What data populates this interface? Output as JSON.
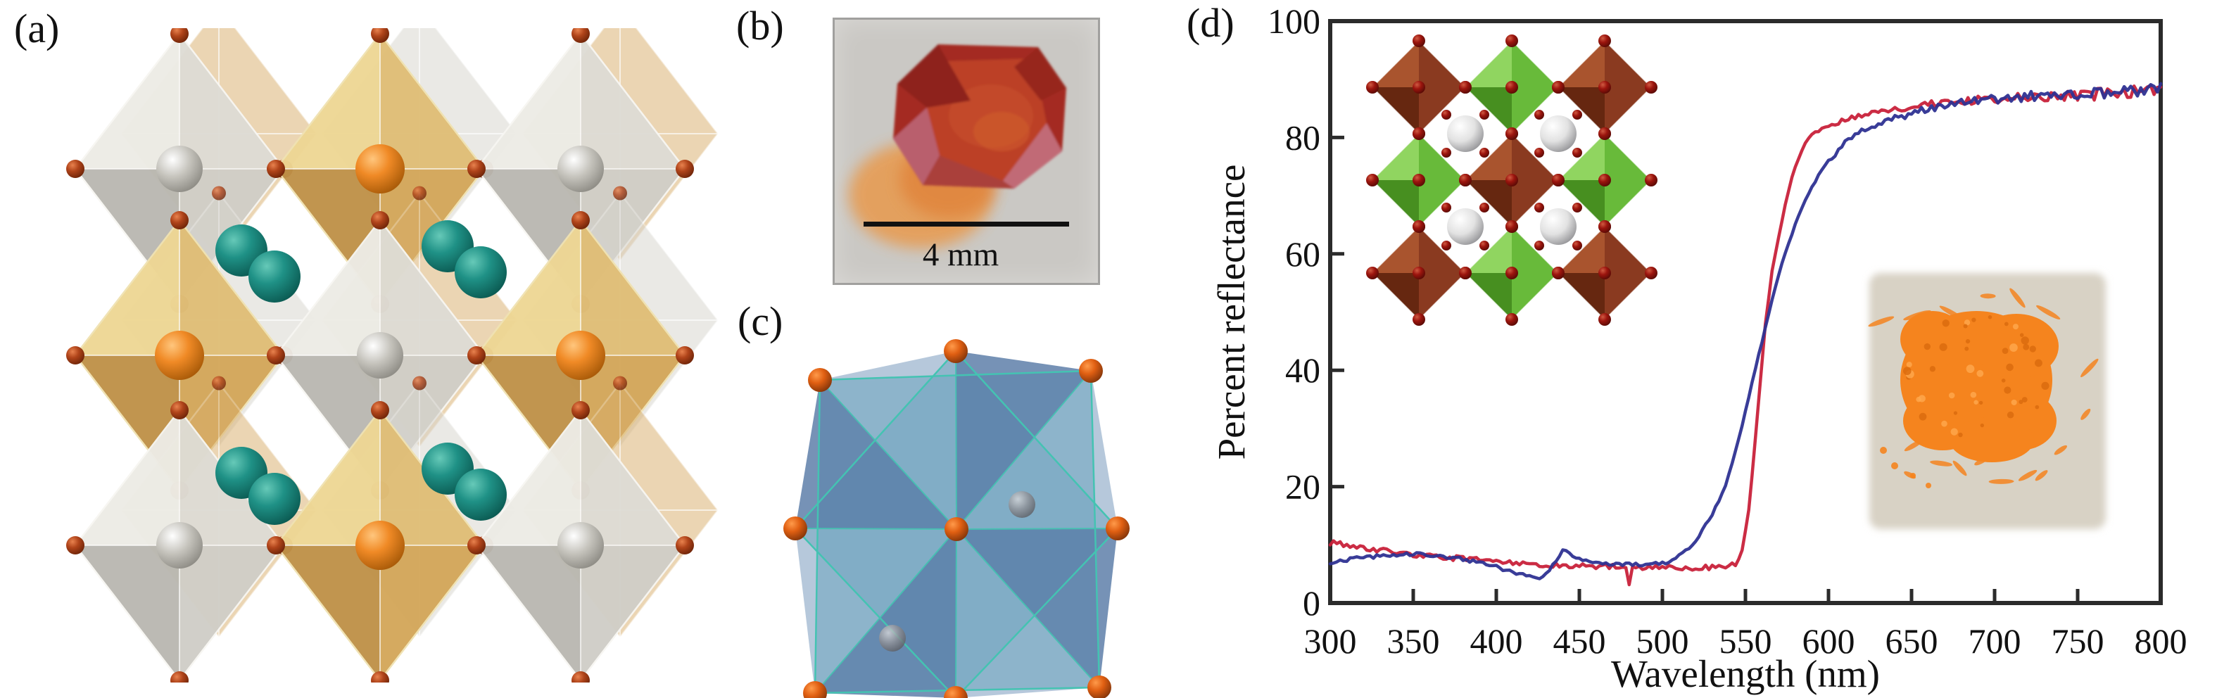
{
  "figure": {
    "panel_a": {
      "label": "(a)",
      "description": "double-perovskite crystal structure: checkerboard of silver-white and gold octahedra with small red-brown vertex spheres, gray and orange central atoms, and pairs of teal spheres in the interstices",
      "colors": {
        "white_face_light": "#edece6",
        "white_face": "#dedcd5",
        "white_face_dark": "#bab8b1",
        "white_face_mid": "#d0cec7",
        "gold_face_light": "#eed794",
        "gold_face": "#e0be76",
        "gold_face_dark": "#bf9148",
        "gold_face_mid": "#d4a75a",
        "back_gold": "#d8ad6a",
        "back_white": "#d6d4cd",
        "vertex_sphere": "#b0441a",
        "gray_sphere": "#c6c4bd",
        "orange_sphere": "#f08a26",
        "teal_sphere": "#1f9186"
      }
    },
    "panel_b": {
      "label": "(b)",
      "scale_bar_label": "4 mm",
      "description": "photograph of a red-orange faceted crystal on a gray background with a black scale bar",
      "colors": {
        "background": "#cac8c4",
        "crystal_body": "#bc4026",
        "crystal_dark": "#8e241e",
        "crystal_pink": "#b95f6d",
        "glow": "#e89a4e",
        "scale_bar": "#111111"
      }
    },
    "panel_c": {
      "label": "(c)",
      "description": "two interpenetrating semi-transparent teal octahedra with steel-blue shaded facets, orange vertex spheres and two faint gray spheres",
      "colors": {
        "teal_face": "#94cbd5",
        "blue_face": "#587aa6",
        "edge": "#44c3b2",
        "orange_sphere": "#e05f12",
        "gray_sphere": "#8e8e93"
      }
    },
    "panel_d": {
      "label": "(d)",
      "inset_structure": {
        "description": "perovskite inset: 3x3 checkerboard of brown and green octahedra with dark-red vertex atoms and four white spheres",
        "colors": {
          "brown": "#8a3a20",
          "brown_light": "#a9542e",
          "brown_dark": "#662710",
          "green": "#68ba3a",
          "green_light": "#90d560",
          "green_dark": "#478f20",
          "vertex": "#9c150e",
          "white_sphere": "#e2e2e2"
        }
      },
      "inset_powder": {
        "description": "photograph of bright orange powder on a beige background",
        "colors": {
          "background": "#d8d2c5",
          "powder": "#f5841e",
          "powder_dark": "#d96a0c",
          "powder_light": "#ffa94d"
        }
      }
    }
  },
  "chart_data": {
    "type": "line",
    "title": "",
    "xlabel": "Wavelength (nm)",
    "ylabel": "Percent reflectance",
    "xlim": [
      300,
      800
    ],
    "ylim": [
      0,
      100
    ],
    "x_ticks": [
      300,
      350,
      400,
      450,
      500,
      550,
      600,
      650,
      700,
      750,
      800
    ],
    "y_ticks": [
      0,
      20,
      40,
      60,
      80,
      100
    ],
    "grid": false,
    "frame": true,
    "legend": "none",
    "series": [
      {
        "name": "red curve (flat ~6% then steep absorption edge near 550 nm)",
        "color": "#c8213a",
        "x": [
          300,
          310,
          320,
          330,
          340,
          350,
          360,
          370,
          380,
          390,
          400,
          410,
          420,
          430,
          440,
          450,
          460,
          470,
          478,
          480,
          482,
          490,
          500,
          510,
          520,
          530,
          540,
          545,
          548,
          552,
          555,
          558,
          562,
          566,
          570,
          575,
          580,
          585,
          590,
          600,
          610,
          620,
          630,
          640,
          650,
          660,
          670,
          680,
          690,
          700,
          720,
          740,
          760,
          780,
          800
        ],
        "y": [
          10.4,
          9.9,
          9.5,
          9.1,
          8.7,
          8.3,
          8.0,
          7.8,
          7.6,
          7.4,
          7.2,
          7.0,
          6.8,
          6.6,
          6.5,
          6.4,
          6.3,
          6.3,
          6.2,
          3.2,
          6.2,
          6.2,
          6.1,
          6.0,
          6.0,
          6.1,
          6.3,
          7.0,
          9.0,
          16,
          25,
          35,
          48,
          57,
          63,
          70,
          75,
          78.5,
          80.5,
          82,
          83,
          83.7,
          84.3,
          84.8,
          85.3,
          85.7,
          86.0,
          86.2,
          86.4,
          86.6,
          86.9,
          87.1,
          87.4,
          87.7,
          88.0
        ]
      },
      {
        "name": "blue curve (dip at 425 nm, bump at 440 nm, gradual edge from ~505 nm)",
        "color": "#2e3192",
        "x": [
          300,
          310,
          320,
          330,
          340,
          350,
          360,
          370,
          380,
          390,
          400,
          410,
          420,
          425,
          430,
          435,
          440,
          445,
          450,
          455,
          460,
          470,
          480,
          490,
          500,
          505,
          510,
          515,
          520,
          525,
          530,
          535,
          540,
          545,
          550,
          555,
          560,
          565,
          570,
          575,
          580,
          585,
          590,
          595,
          600,
          610,
          620,
          630,
          640,
          650,
          660,
          670,
          680,
          690,
          700,
          720,
          740,
          760,
          780,
          800
        ],
        "y": [
          7.0,
          7.4,
          7.8,
          8.1,
          8.3,
          8.4,
          8.3,
          8.0,
          7.5,
          6.9,
          6.2,
          5.3,
          4.5,
          4.2,
          5.0,
          7.0,
          9.1,
          8.3,
          7.6,
          7.2,
          6.9,
          6.7,
          6.6,
          6.6,
          6.8,
          7.2,
          8.0,
          9.2,
          10.8,
          12.8,
          15.2,
          18.0,
          22.0,
          27.0,
          33.0,
          39.0,
          45.0,
          51.0,
          56.5,
          61.0,
          65.0,
          68.5,
          71.5,
          74.0,
          76.0,
          79.0,
          81.0,
          82.3,
          83.3,
          84.2,
          85.0,
          85.5,
          85.9,
          86.2,
          86.5,
          87.0,
          87.4,
          87.7,
          88.0,
          88.4
        ]
      }
    ],
    "annotations": {
      "crossing_point": {
        "wavelength_nm": 562,
        "reflectance_pct": 49
      }
    },
    "insets": [
      {
        "name": "perovskite-structure",
        "position": "top-left"
      },
      {
        "name": "orange-powder-photo",
        "position": "bottom-right"
      }
    ]
  }
}
